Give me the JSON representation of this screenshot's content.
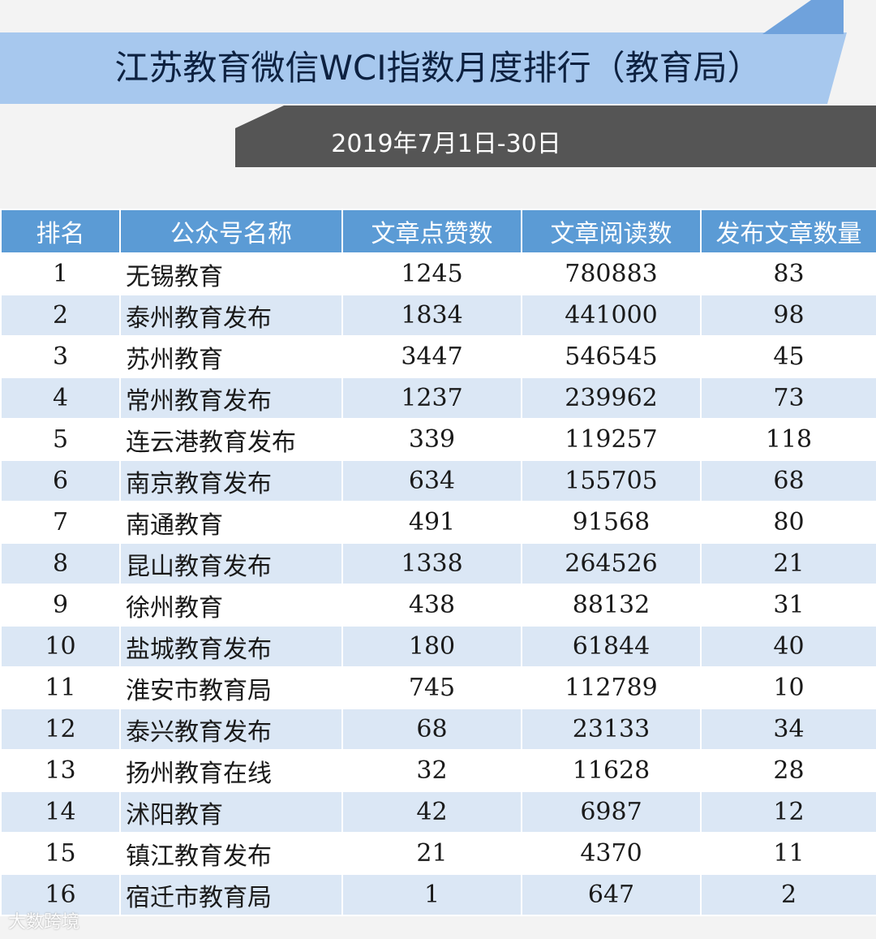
{
  "title": "江苏教育微信WCI指数月度排行（教育局）",
  "date_range": "2019年7月1日-30日",
  "columns": [
    "排名",
    "公众号名称",
    "文章点赞数",
    "文章阅读数",
    "发布文章数量"
  ],
  "rows": [
    [
      "1",
      "无锡教育",
      "1245",
      "780883",
      "83"
    ],
    [
      "2",
      "泰州教育发布",
      "1834",
      "441000",
      "98"
    ],
    [
      "3",
      "苏州教育",
      "3447",
      "546545",
      "45"
    ],
    [
      "4",
      "常州教育发布",
      "1237",
      "239962",
      "73"
    ],
    [
      "5",
      "连云港教育发布",
      "339",
      "119257",
      "118"
    ],
    [
      "6",
      "南京教育发布",
      "634",
      "155705",
      "68"
    ],
    [
      "7",
      "南通教育",
      "491",
      "91568",
      "80"
    ],
    [
      "8",
      "昆山教育发布",
      "1338",
      "264526",
      "21"
    ],
    [
      "9",
      "徐州教育",
      "438",
      "88132",
      "31"
    ],
    [
      "10",
      "盐城教育发布",
      "180",
      "61844",
      "40"
    ],
    [
      "11",
      "淮安市教育局",
      "745",
      "112789",
      "10"
    ],
    [
      "12",
      "泰兴教育发布",
      "68",
      "23133",
      "34"
    ],
    [
      "13",
      "扬州教育在线",
      "32",
      "11628",
      "28"
    ],
    [
      "14",
      "沭阳教育",
      "42",
      "6987",
      "12"
    ],
    [
      "15",
      "镇江教育发布",
      "21",
      "4370",
      "11"
    ],
    [
      "16",
      "宿迁市教育局",
      "1",
      "647",
      "2"
    ]
  ],
  "watermark": "大数跨境",
  "colors": {
    "header_bg": "#5b9bd5",
    "row_alt_bg": "#dbe7f5",
    "title_banner": "#a7c8ee",
    "date_banner": "#555555"
  }
}
